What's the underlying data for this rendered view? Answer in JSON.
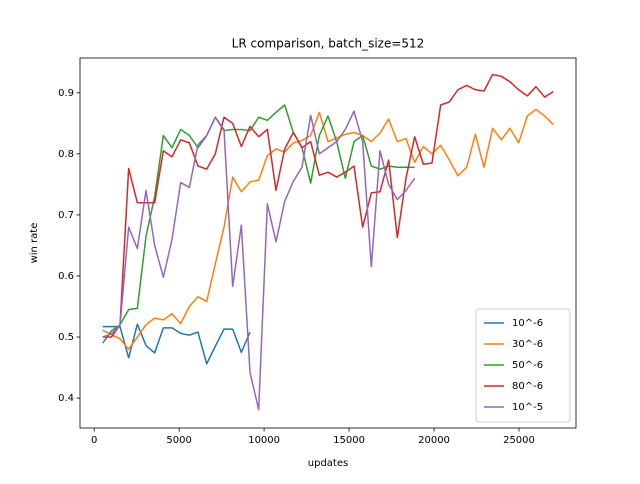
{
  "chart_data": {
    "type": "line",
    "title": "LR comparison, batch_size=512",
    "xlabel": "updates",
    "ylabel": "win rate",
    "xlim": [
      -835,
      28355
    ],
    "ylim": [
      0.351,
      0.957
    ],
    "xticks": [
      0,
      5000,
      10000,
      15000,
      20000,
      25000
    ],
    "yticks": [
      0.4,
      0.5,
      0.6,
      0.7,
      0.8,
      0.9
    ],
    "legend": "lower right",
    "series": [
      {
        "name": "10^-6",
        "color": "#1f77b4",
        "x": [
          500,
          1010,
          1520,
          2030,
          2540,
          3050,
          3560,
          4070,
          4580,
          5090,
          5600,
          6110,
          6620,
          7130,
          7640,
          8150,
          8660,
          9170
        ],
        "values": [
          0.517,
          0.517,
          0.517,
          0.466,
          0.521,
          0.486,
          0.474,
          0.515,
          0.515,
          0.506,
          0.503,
          0.508,
          0.456,
          0.485,
          0.513,
          0.513,
          0.475,
          0.508
        ]
      },
      {
        "name": "30^-6",
        "color": "#ff7f0e",
        "x": [
          500,
          1010,
          1520,
          2030,
          2540,
          3050,
          3560,
          4070,
          4580,
          5090,
          5600,
          6110,
          6620,
          7130,
          7640,
          8150,
          8660,
          9170,
          9680,
          10190,
          10700,
          11210,
          11720,
          12230,
          12740,
          13250,
          13760,
          14270,
          14780,
          15290,
          15800,
          16310,
          16820,
          17330,
          17840,
          18350,
          18860,
          19370,
          19880,
          20390,
          20900,
          21410,
          21920,
          22430,
          22940,
          23450,
          23960,
          24470,
          24980,
          25490,
          26000,
          26510,
          27020
        ],
        "values": [
          0.511,
          0.504,
          0.497,
          0.48,
          0.5,
          0.52,
          0.531,
          0.528,
          0.538,
          0.522,
          0.55,
          0.566,
          0.558,
          0.62,
          0.68,
          0.762,
          0.738,
          0.754,
          0.757,
          0.797,
          0.808,
          0.803,
          0.818,
          0.822,
          0.83,
          0.868,
          0.82,
          0.826,
          0.832,
          0.835,
          0.83,
          0.82,
          0.834,
          0.857,
          0.82,
          0.825,
          0.786,
          0.812,
          0.8,
          0.814,
          0.79,
          0.764,
          0.778,
          0.832,
          0.778,
          0.842,
          0.823,
          0.842,
          0.818,
          0.862,
          0.873,
          0.862,
          0.848
        ]
      },
      {
        "name": "50^-6",
        "color": "#2ca02c",
        "x": [
          500,
          1010,
          1520,
          2030,
          2540,
          3050,
          3560,
          4070,
          4580,
          5090,
          5600,
          6110,
          6620,
          7130,
          7640,
          8150,
          8660,
          9170,
          9680,
          10190,
          10700,
          11210,
          11720,
          12230,
          12740,
          13250,
          13760,
          14270,
          14780,
          15290,
          15800,
          16310,
          16820,
          17330,
          17840,
          18350,
          18860
        ],
        "values": [
          0.49,
          0.51,
          0.52,
          0.545,
          0.547,
          0.665,
          0.73,
          0.83,
          0.81,
          0.84,
          0.83,
          0.81,
          0.83,
          0.86,
          0.838,
          0.84,
          0.84,
          0.838,
          0.86,
          0.855,
          0.868,
          0.88,
          0.835,
          0.81,
          0.752,
          0.83,
          0.862,
          0.82,
          0.76,
          0.82,
          0.83,
          0.78,
          0.775,
          0.78,
          0.778,
          0.778,
          0.778
        ]
      },
      {
        "name": "80^-6",
        "color": "#d62728",
        "x": [
          500,
          1010,
          1520,
          2030,
          2540,
          3050,
          3560,
          4070,
          4580,
          5090,
          5600,
          6110,
          6620,
          7130,
          7640,
          8150,
          8660,
          9170,
          9680,
          10190,
          10700,
          11210,
          11720,
          12230,
          12740,
          13250,
          13760,
          14270,
          14780,
          15290,
          15800,
          16310,
          16820,
          17330,
          17840,
          18350,
          18860,
          19370,
          19880,
          20390,
          20900,
          21410,
          21920,
          22430,
          22940,
          23450,
          23960,
          24470,
          24980,
          25490,
          26000,
          26510,
          27020
        ],
        "values": [
          0.5,
          0.5,
          0.52,
          0.776,
          0.72,
          0.72,
          0.72,
          0.805,
          0.795,
          0.823,
          0.818,
          0.78,
          0.775,
          0.8,
          0.86,
          0.85,
          0.812,
          0.845,
          0.828,
          0.84,
          0.74,
          0.808,
          0.835,
          0.81,
          0.82,
          0.765,
          0.77,
          0.762,
          0.77,
          0.78,
          0.68,
          0.736,
          0.738,
          0.79,
          0.663,
          0.76,
          0.828,
          0.783,
          0.785,
          0.88,
          0.885,
          0.905,
          0.912,
          0.905,
          0.903,
          0.93,
          0.927,
          0.918,
          0.905,
          0.895,
          0.91,
          0.893,
          0.902
        ]
      },
      {
        "name": "10^-5",
        "color": "#9467bd",
        "x": [
          500,
          1010,
          1520,
          2030,
          2540,
          3050,
          3560,
          4070,
          4580,
          5090,
          5600,
          6110,
          6620,
          7130,
          7640,
          8150,
          8660,
          9170,
          9680,
          10190,
          10700,
          11210,
          11720,
          12230,
          12740,
          13250,
          13760,
          14270,
          14780,
          15290,
          15800,
          16310,
          16820,
          17330,
          17840,
          18350,
          18860
        ],
        "values": [
          0.5,
          0.505,
          0.52,
          0.68,
          0.645,
          0.74,
          0.65,
          0.598,
          0.66,
          0.753,
          0.745,
          0.815,
          0.83,
          0.86,
          0.84,
          0.583,
          0.683,
          0.442,
          0.381,
          0.718,
          0.656,
          0.722,
          0.755,
          0.778,
          0.863,
          0.8,
          0.81,
          0.82,
          0.84,
          0.87,
          0.82,
          0.615,
          0.805,
          0.75,
          0.725,
          0.74,
          0.76
        ]
      }
    ]
  }
}
